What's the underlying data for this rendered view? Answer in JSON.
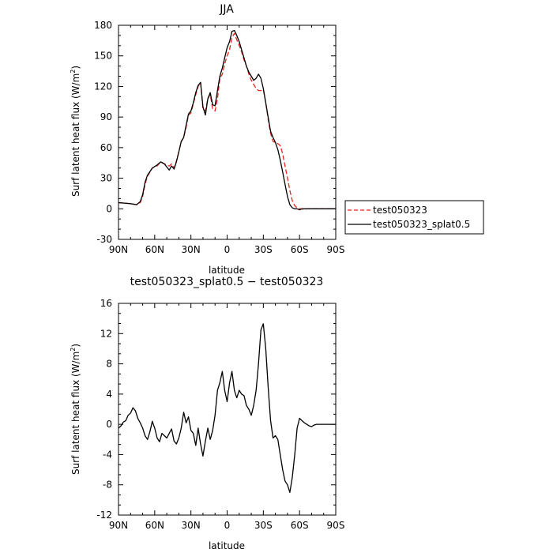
{
  "chart_data": [
    {
      "type": "line",
      "title": "JJA",
      "xlabel": "latitude",
      "ylabel": "Surf latent heat flux (W/m²)",
      "ylabel_base": "Surf latent heat flux (W/m",
      "ylabel_sup": "2",
      "ylabel_end": ")",
      "xlim": [
        90,
        -90
      ],
      "ylim": [
        -30,
        180
      ],
      "xticks": [
        {
          "v": 90,
          "label": "90N"
        },
        {
          "v": 60,
          "label": "60N"
        },
        {
          "v": 30,
          "label": "30N"
        },
        {
          "v": 0,
          "label": "0"
        },
        {
          "v": -30,
          "label": "30S"
        },
        {
          "v": -60,
          "label": "60S"
        },
        {
          "v": -90,
          "label": "90S"
        }
      ],
      "yticks": [
        -30,
        0,
        30,
        60,
        90,
        120,
        150,
        180
      ],
      "legend": {
        "placement": "outside-right-bottom"
      },
      "series": [
        {
          "name": "test050323",
          "color": "#e8231e",
          "dash": "dashed",
          "x": [
            90,
            80,
            75,
            72,
            70,
            68,
            66,
            62,
            58,
            55,
            52,
            50,
            48,
            46,
            44,
            42,
            40,
            38,
            36,
            34,
            32,
            30,
            28,
            26,
            24,
            22,
            20,
            18,
            16,
            14,
            12,
            10,
            8,
            6,
            4,
            2,
            0,
            -2,
            -4,
            -6,
            -8,
            -10,
            -12,
            -14,
            -16,
            -18,
            -20,
            -22,
            -24,
            -26,
            -28,
            -30,
            -32,
            -34,
            -36,
            -38,
            -40,
            -42,
            -44,
            -46,
            -48,
            -50,
            -52,
            -54,
            -56,
            -58,
            -60,
            -62,
            -64,
            -66,
            -68,
            -70,
            -72,
            -74,
            -76,
            -78,
            -80,
            -82,
            -84,
            -86,
            -88,
            -90
          ],
          "values": [
            6,
            5,
            4,
            6,
            12,
            24,
            32,
            40,
            42,
            46,
            44,
            43,
            42,
            44,
            40,
            47,
            56,
            66,
            70,
            80,
            92,
            94,
            103,
            112,
            120,
            124,
            98,
            96,
            108,
            112,
            98,
            96,
            108,
            128,
            132,
            142,
            150,
            156,
            168,
            172,
            166,
            160,
            154,
            146,
            140,
            132,
            126,
            122,
            118,
            116,
            116,
            117,
            104,
            88,
            74,
            66,
            65,
            64,
            62,
            54,
            42,
            30,
            18,
            8,
            3,
            1,
            0,
            0,
            -1,
            0,
            0,
            0,
            0,
            0,
            0,
            0,
            0,
            0,
            0,
            0,
            0,
            0
          ]
        },
        {
          "name": "test050323_splat0.5",
          "color": "#000000",
          "dash": "solid",
          "x": [
            90,
            80,
            75,
            72,
            70,
            68,
            66,
            62,
            58,
            55,
            52,
            50,
            48,
            46,
            44,
            42,
            40,
            38,
            36,
            34,
            32,
            30,
            28,
            26,
            24,
            22,
            20,
            18,
            16,
            14,
            12,
            10,
            8,
            6,
            4,
            2,
            0,
            -2,
            -4,
            -6,
            -8,
            -10,
            -12,
            -14,
            -16,
            -18,
            -20,
            -22,
            -24,
            -26,
            -28,
            -30,
            -32,
            -34,
            -36,
            -38,
            -40,
            -42,
            -44,
            -46,
            -48,
            -50,
            -52,
            -54,
            -56,
            -58,
            -60,
            -62,
            -64,
            -66,
            -68,
            -70,
            -72,
            -74,
            -76,
            -78,
            -80,
            -82,
            -84,
            -86,
            -88,
            -90
          ],
          "values": [
            6,
            5,
            4,
            7,
            14,
            26,
            33,
            40,
            43,
            46,
            44,
            41,
            38,
            42,
            39,
            46,
            56,
            66,
            70,
            82,
            93,
            96,
            104,
            114,
            121,
            124,
            100,
            92,
            108,
            114,
            102,
            101,
            116,
            130,
            138,
            148,
            158,
            164,
            174,
            175,
            170,
            164,
            156,
            148,
            140,
            134,
            130,
            126,
            128,
            132,
            128,
            118,
            104,
            90,
            76,
            70,
            65,
            58,
            48,
            36,
            24,
            12,
            4,
            1,
            0,
            0,
            -1,
            0,
            0,
            0,
            0,
            0,
            0,
            0,
            0,
            0,
            0,
            0,
            0,
            0,
            0,
            0
          ]
        }
      ]
    },
    {
      "type": "line",
      "title": "test050323_splat0.5 − test050323",
      "xlabel": "latitude",
      "ylabel_base": "Surf latent heat flux (W/m",
      "ylabel_sup": "2",
      "ylabel_end": ")",
      "xlim": [
        90,
        -90
      ],
      "ylim": [
        -12,
        16
      ],
      "xticks": [
        {
          "v": 90,
          "label": "90N"
        },
        {
          "v": 60,
          "label": "60N"
        },
        {
          "v": 30,
          "label": "30N"
        },
        {
          "v": 0,
          "label": "0"
        },
        {
          "v": -30,
          "label": "30S"
        },
        {
          "v": -60,
          "label": "60S"
        },
        {
          "v": -90,
          "label": "90S"
        }
      ],
      "yticks": [
        -12,
        -8,
        -4,
        0,
        4,
        8,
        12,
        16
      ],
      "series": [
        {
          "name": "",
          "color": "#000000",
          "dash": "solid",
          "x": [
            90,
            88,
            86,
            84,
            82,
            80,
            78,
            76,
            74,
            72,
            70,
            68,
            66,
            64,
            62,
            60,
            58,
            56,
            54,
            52,
            50,
            48,
            46,
            44,
            42,
            40,
            38,
            36,
            34,
            32,
            30,
            28,
            26,
            24,
            22,
            20,
            18,
            16,
            14,
            12,
            10,
            8,
            6,
            4,
            2,
            0,
            -2,
            -4,
            -6,
            -8,
            -10,
            -12,
            -14,
            -16,
            -18,
            -20,
            -22,
            -24,
            -26,
            -28,
            -30,
            -32,
            -34,
            -36,
            -38,
            -40,
            -42,
            -44,
            -46,
            -48,
            -50,
            -52,
            -54,
            -56,
            -58,
            -60,
            -62,
            -64,
            -66,
            -68,
            -70,
            -72,
            -74,
            -76,
            -78,
            -80,
            -82,
            -84,
            -86,
            -88,
            -90
          ],
          "values": [
            -0.5,
            -0.2,
            0.3,
            0.5,
            1.2,
            1.5,
            2.2,
            1.8,
            0.8,
            0.2,
            -0.5,
            -1.5,
            -2,
            -1,
            0.4,
            -0.5,
            -1.8,
            -2.3,
            -1.2,
            -1.5,
            -1.8,
            -1.2,
            -0.6,
            -2.2,
            -2.6,
            -1.8,
            -0.5,
            1.6,
            0.2,
            1.0,
            -0.8,
            -1.2,
            -2.8,
            -0.5,
            -2.6,
            -4.2,
            -2.2,
            -0.5,
            -2.0,
            -0.8,
            1.2,
            4.5,
            5.5,
            7,
            4.5,
            3.0,
            5.5,
            7.0,
            4.5,
            3.5,
            4.5,
            4.0,
            3.8,
            2.5,
            2.0,
            1.2,
            2.5,
            4.5,
            8.0,
            12.5,
            13.3,
            10.0,
            5.0,
            0.5,
            -1.8,
            -1.5,
            -2.0,
            -4.0,
            -6.0,
            -7.5,
            -8.0,
            -9.0,
            -7.0,
            -4.0,
            -0.5,
            0.8,
            0.5,
            0.2,
            0,
            -0.2,
            -0.3,
            -0.1,
            0,
            0,
            0,
            0,
            0,
            0,
            0,
            0,
            0
          ]
        }
      ]
    }
  ]
}
